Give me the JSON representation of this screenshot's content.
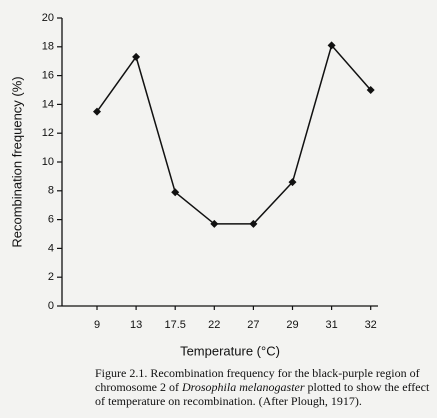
{
  "chart_data": {
    "type": "line",
    "x_label": "Temperature (°C)",
    "y_label": "Recombination frequency (%)",
    "categories": [
      "9",
      "13",
      "17.5",
      "22",
      "27",
      "29",
      "31",
      "32"
    ],
    "values": [
      13.5,
      17.3,
      7.9,
      5.7,
      5.7,
      8.6,
      18.1,
      15.0
    ],
    "color": "#111111",
    "ylim": [
      0,
      20
    ],
    "yticks": [
      0,
      2,
      4,
      6,
      8,
      10,
      12,
      14,
      16,
      18,
      20
    ],
    "grid": false,
    "caption": [
      "Figure 2.1. Recombination frequency for the black-purple region of chromosome 2 of ",
      "Drosophila melanogaster",
      " plotted to show the effect of temperature on recombination. (After Plough, 1917)."
    ]
  }
}
